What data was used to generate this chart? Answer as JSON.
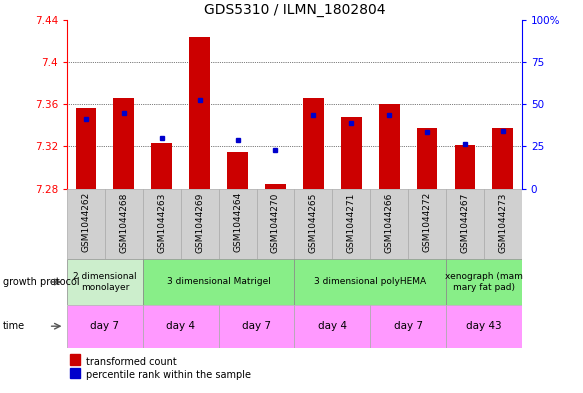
{
  "title": "GDS5310 / ILMN_1802804",
  "samples": [
    "GSM1044262",
    "GSM1044268",
    "GSM1044263",
    "GSM1044269",
    "GSM1044264",
    "GSM1044270",
    "GSM1044265",
    "GSM1044271",
    "GSM1044266",
    "GSM1044272",
    "GSM1044267",
    "GSM1044273"
  ],
  "bar_bottom": 7.28,
  "bar_tops": [
    7.356,
    7.366,
    7.323,
    7.424,
    7.315,
    7.284,
    7.366,
    7.348,
    7.36,
    7.337,
    7.321,
    7.337
  ],
  "percentile_values": [
    7.346,
    7.352,
    7.328,
    7.364,
    7.326,
    7.317,
    7.35,
    7.342,
    7.35,
    7.334,
    7.322,
    7.335
  ],
  "ylim": [
    7.28,
    7.44
  ],
  "yticks_left": [
    7.28,
    7.32,
    7.36,
    7.4,
    7.44
  ],
  "yticks_right": [
    0,
    25,
    50,
    75,
    100
  ],
  "bar_color": "#cc0000",
  "percentile_color": "#0000cc",
  "growth_protocol_groups": [
    {
      "label": "2 dimensional\nmonolayer",
      "start": 0,
      "end": 2,
      "color": "#ccffcc"
    },
    {
      "label": "3 dimensional Matrigel",
      "start": 2,
      "end": 6,
      "color": "#99ff99"
    },
    {
      "label": "3 dimensional polyHEMA",
      "start": 6,
      "end": 10,
      "color": "#99ff99"
    },
    {
      "label": "xenograph (mam\nmary fat pad)",
      "start": 10,
      "end": 12,
      "color": "#99ff99"
    }
  ],
  "time_groups": [
    {
      "label": "day 7",
      "start": 0,
      "end": 2
    },
    {
      "label": "day 4",
      "start": 2,
      "end": 4
    },
    {
      "label": "day 7",
      "start": 4,
      "end": 6
    },
    {
      "label": "day 4",
      "start": 6,
      "end": 8
    },
    {
      "label": "day 7",
      "start": 8,
      "end": 10
    },
    {
      "label": "day 43",
      "start": 10,
      "end": 12
    }
  ],
  "time_color": "#ff99ff",
  "sample_bg_color": "#d0d0d0",
  "gp_color": "#99ee99"
}
